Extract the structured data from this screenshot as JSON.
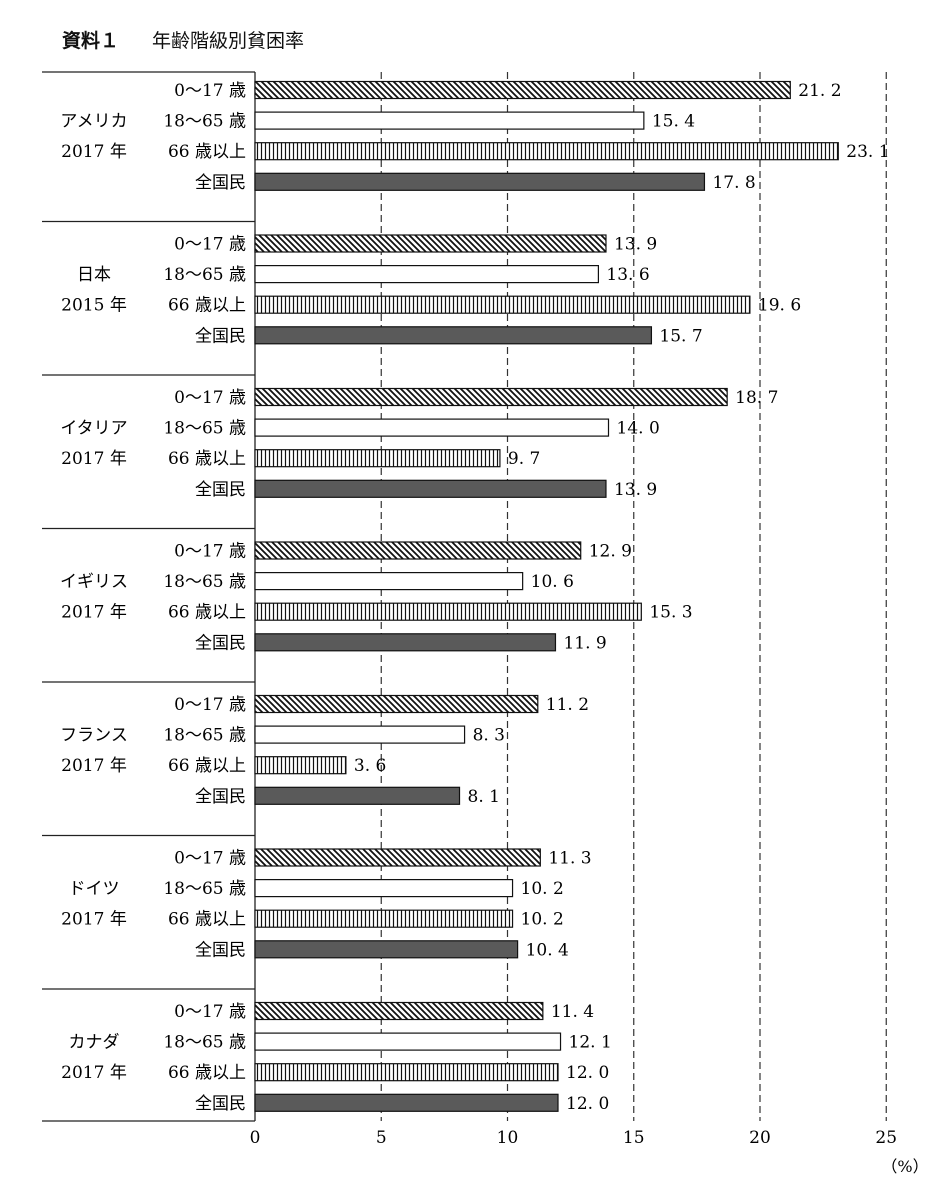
{
  "header": {
    "tag": "資料１",
    "title": "年齢階級別貧困率"
  },
  "chart_data": {
    "type": "bar",
    "orientation": "horizontal",
    "title": "年齢階級別貧困率",
    "unit_label": "（%）",
    "xlim": [
      0,
      25
    ],
    "xticks": [
      0,
      5,
      10,
      15,
      20,
      25
    ],
    "grid": "vertical dashed",
    "series_names": [
      "0～17 歳",
      "18～65 歳",
      "66 歳以上",
      "全国民"
    ],
    "series_styles": [
      "diagonal-hatch",
      "white",
      "vertical-hatch",
      "dark-gray"
    ],
    "groups": [
      {
        "name": "アメリカ",
        "year": "2017 年",
        "values": [
          21.2,
          15.4,
          23.1,
          17.8
        ],
        "labels": [
          "21. 2",
          "15. 4",
          "23. 1",
          "17. 8"
        ]
      },
      {
        "name": "日本",
        "year": "2015 年",
        "values": [
          13.9,
          13.6,
          19.6,
          15.7
        ],
        "labels": [
          "13. 9",
          "13. 6",
          "19. 6",
          "15. 7"
        ]
      },
      {
        "name": "イタリア",
        "year": "2017 年",
        "values": [
          18.7,
          14.0,
          9.7,
          13.9
        ],
        "labels": [
          "18. 7",
          "14. 0",
          "9. 7",
          "13. 9"
        ]
      },
      {
        "name": "イギリス",
        "year": "2017 年",
        "values": [
          12.9,
          10.6,
          15.3,
          11.9
        ],
        "labels": [
          "12. 9",
          "10. 6",
          "15. 3",
          "11. 9"
        ]
      },
      {
        "name": "フランス",
        "year": "2017 年",
        "values": [
          11.2,
          8.3,
          3.6,
          8.1
        ],
        "labels": [
          "11. 2",
          "8. 3",
          "3. 6",
          "8. 1"
        ]
      },
      {
        "name": "ドイツ",
        "year": "2017 年",
        "values": [
          11.3,
          10.2,
          10.2,
          10.4
        ],
        "labels": [
          "11. 3",
          "10. 2",
          "10. 2",
          "10. 4"
        ]
      },
      {
        "name": "カナダ",
        "year": "2017 年",
        "values": [
          11.4,
          12.1,
          12.0,
          12.0
        ],
        "labels": [
          "11. 4",
          "12. 1",
          "12. 0",
          "12. 0"
        ]
      }
    ]
  }
}
